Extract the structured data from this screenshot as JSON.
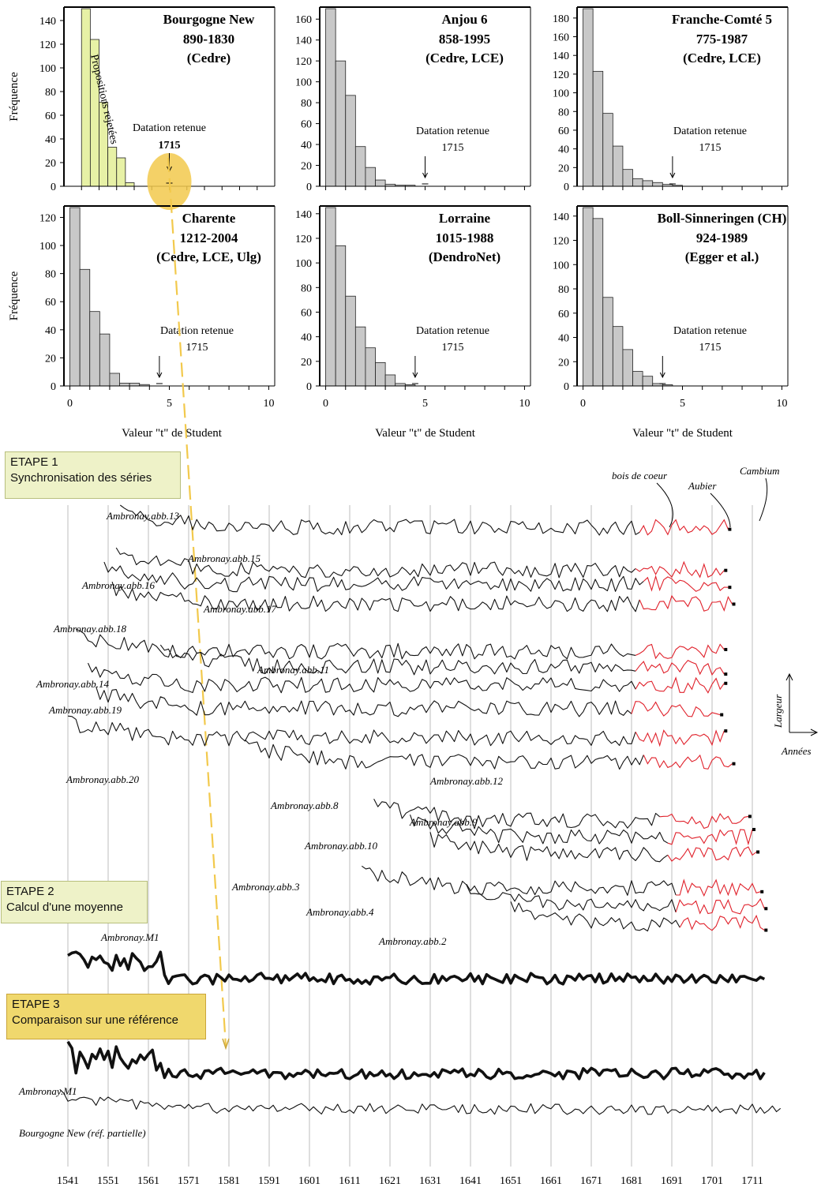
{
  "colors": {
    "bar_grey": "#c8c8c8",
    "bar_green": "#e7f1a6",
    "highlight": "#f2c94c",
    "sapwood": "#e0202a",
    "accent_box": "#eef2c8",
    "accent_box3": "#f0d86d"
  },
  "chart_data": [
    {
      "type": "bar",
      "panel": "Bourgogne New",
      "title": "Bourgogne New",
      "subtitle": "890-1830",
      "sources": "(Cedre)",
      "ylabel": "Fréquence",
      "xlabel": "",
      "xlim": [
        -1,
        11
      ],
      "ylim": [
        0,
        150
      ],
      "yticks": [
        0,
        20,
        40,
        60,
        80,
        100,
        120,
        140
      ],
      "xticks": [
        0,
        5,
        10
      ],
      "bin_width": 0.5,
      "values": [
        150,
        124,
        71,
        33,
        24,
        3
      ],
      "annotation": "Propositions rejetées",
      "marker_label": "Datation retenue",
      "marker_year": "1715",
      "marker_t": 5.0
    },
    {
      "type": "bar",
      "panel": "Anjou 6",
      "title": "Anjou 6",
      "subtitle": "858-1995",
      "sources": "(Cedre, LCE)",
      "ylabel": "",
      "xlabel": "",
      "xlim": [
        -0.3,
        10.3
      ],
      "ylim": [
        0,
        170
      ],
      "yticks": [
        0,
        20,
        40,
        60,
        80,
        100,
        120,
        140,
        160
      ],
      "xticks": [
        0,
        5,
        10
      ],
      "bin_width": 0.5,
      "values": [
        170,
        120,
        87,
        38,
        18,
        6,
        2,
        1,
        1
      ],
      "marker_label": "Datation retenue",
      "marker_year": "1715",
      "marker_t": 5.0
    },
    {
      "type": "bar",
      "panel": "Franche-Comté 5",
      "title": "Franche-Comté 5",
      "subtitle": "775-1987",
      "sources": "(Cedre, LCE)",
      "ylabel": "",
      "xlabel": "",
      "xlim": [
        -0.3,
        10.3
      ],
      "ylim": [
        0,
        190
      ],
      "yticks": [
        0,
        20,
        40,
        60,
        80,
        100,
        120,
        140,
        160,
        180
      ],
      "xticks": [
        0,
        5,
        10
      ],
      "bin_width": 0.5,
      "values": [
        190,
        123,
        78,
        43,
        18,
        8,
        6,
        4,
        2,
        1
      ],
      "marker_label": "Datation retenue",
      "marker_year": "1715",
      "marker_t": 4.5
    },
    {
      "type": "bar",
      "panel": "Charente",
      "title": "Charente",
      "subtitle": "1212-2004",
      "sources": "(Cedre, LCE, Ulg)",
      "ylabel": "Fréquence",
      "xlabel": "Valeur \"t\" de Student",
      "xlim": [
        -0.3,
        10.3
      ],
      "ylim": [
        0,
        127
      ],
      "yticks": [
        0,
        20,
        40,
        60,
        80,
        100,
        120
      ],
      "xticks": [
        0,
        5,
        10
      ],
      "bin_width": 0.5,
      "values": [
        127,
        83,
        53,
        37,
        9,
        2,
        2,
        1
      ],
      "marker_label": "Datation retenue",
      "marker_year": "1715",
      "marker_t": 4.5
    },
    {
      "type": "bar",
      "panel": "Lorraine",
      "title": "Lorraine",
      "subtitle": "1015-1988",
      "sources": "(DendroNet)",
      "ylabel": "",
      "xlabel": "Valeur \"t\" de Student",
      "xlim": [
        -0.3,
        10.3
      ],
      "ylim": [
        0,
        145
      ],
      "yticks": [
        0,
        20,
        40,
        60,
        80,
        100,
        120,
        140
      ],
      "xticks": [
        0,
        5,
        10
      ],
      "bin_width": 0.5,
      "values": [
        145,
        114,
        73,
        48,
        31,
        19,
        9,
        2,
        1
      ],
      "marker_label": "Datation retenue",
      "marker_year": "1715",
      "marker_t": 4.5
    },
    {
      "type": "bar",
      "panel": "Boll-Sinneringen (CH)",
      "title": "Boll-Sinneringen (CH)",
      "subtitle": "924-1989",
      "sources": "(Egger et al.)",
      "ylabel": "",
      "xlabel": "Valeur \"t\" de Student",
      "xlim": [
        -0.3,
        10.3
      ],
      "ylim": [
        0,
        147
      ],
      "yticks": [
        0,
        20,
        40,
        60,
        80,
        100,
        120,
        140
      ],
      "xticks": [
        0,
        5,
        10
      ],
      "bin_width": 0.5,
      "values": [
        147,
        138,
        73,
        49,
        30,
        12,
        8,
        2,
        1
      ],
      "marker_label": "Datation retenue",
      "marker_year": "1715",
      "marker_t": 4.0
    },
    {
      "type": "line",
      "panel": "series",
      "xlabel": "",
      "ylabel": "Largeur",
      "x_axis_label": "Années",
      "xticks": [
        1541,
        1551,
        1561,
        1571,
        1581,
        1591,
        1601,
        1611,
        1621,
        1631,
        1641,
        1651,
        1661,
        1671,
        1681,
        1691,
        1701,
        1711
      ],
      "series": [
        {
          "name": "Ambronay.abb.13",
          "start": 1554,
          "end": 1705,
          "sapwood_start": 1683
        },
        {
          "name": "Ambronay.abb.15",
          "start": 1553,
          "end": 1704,
          "sapwood_start": 1682
        },
        {
          "name": "Ambronay.abb.16",
          "start": 1550,
          "end": 1705,
          "sapwood_start": 1684
        },
        {
          "name": "Ambronay.abb.17",
          "start": 1552,
          "end": 1706,
          "sapwood_start": 1683
        },
        {
          "name": "Ambronay.abb.18",
          "start": 1543,
          "end": 1704,
          "sapwood_start": 1682
        },
        {
          "name": "Ambronay.abb.11",
          "start": 1564,
          "end": 1704,
          "sapwood_start": 1682
        },
        {
          "name": "Ambronay.abb.14",
          "start": 1546,
          "end": 1704,
          "sapwood_start": 1682
        },
        {
          "name": "Ambronay.abb.19",
          "start": 1548,
          "end": 1703,
          "sapwood_start": 1681
        },
        {
          "name": "Ambronay.abb.20",
          "start": 1541,
          "end": 1704,
          "sapwood_start": 1682
        },
        {
          "name": "Ambronay.abb.12",
          "start": 1585,
          "end": 1706,
          "sapwood_start": 1684
        },
        {
          "name": "Ambronay.abb.8",
          "start": 1617,
          "end": 1710,
          "sapwood_start": 1688
        },
        {
          "name": "Ambronay.abb.9",
          "start": 1626,
          "end": 1711,
          "sapwood_start": 1690
        },
        {
          "name": "Ambronay.abb.10",
          "start": 1631,
          "end": 1712,
          "sapwood_start": 1690
        },
        {
          "name": "Ambronay.abb.3",
          "start": 1614,
          "end": 1713,
          "sapwood_start": 1692
        },
        {
          "name": "Ambronay.abb.4",
          "start": 1640,
          "end": 1714,
          "sapwood_start": 1692
        },
        {
          "name": "Ambronay.abb.2",
          "start": 1651,
          "end": 1714,
          "sapwood_start": 1693
        },
        {
          "name": "Ambronay.M1",
          "start": 1541,
          "end": 1714,
          "mean": true
        },
        {
          "name": "Ambronay.M1",
          "start": 1541,
          "end": 1714,
          "mean": true
        },
        {
          "name": "Bourgogne New (réf. partielle)",
          "start": 1539,
          "end": 1718
        }
      ],
      "annotations": [
        "bois de coeur",
        "Aubier",
        "Cambium"
      ]
    }
  ],
  "steps": [
    {
      "title": "ETAPE 1",
      "text": "Synchronisation des séries"
    },
    {
      "title": "ETAPE 2",
      "text": "Calcul d'une moyenne"
    },
    {
      "title": "ETAPE 3",
      "text": "Comparaison sur une référence"
    }
  ],
  "labels": {
    "largeur": "Largeur",
    "annees": "Années",
    "bois": "bois de coeur",
    "aubier": "Aubier",
    "cambium": "Cambium"
  }
}
